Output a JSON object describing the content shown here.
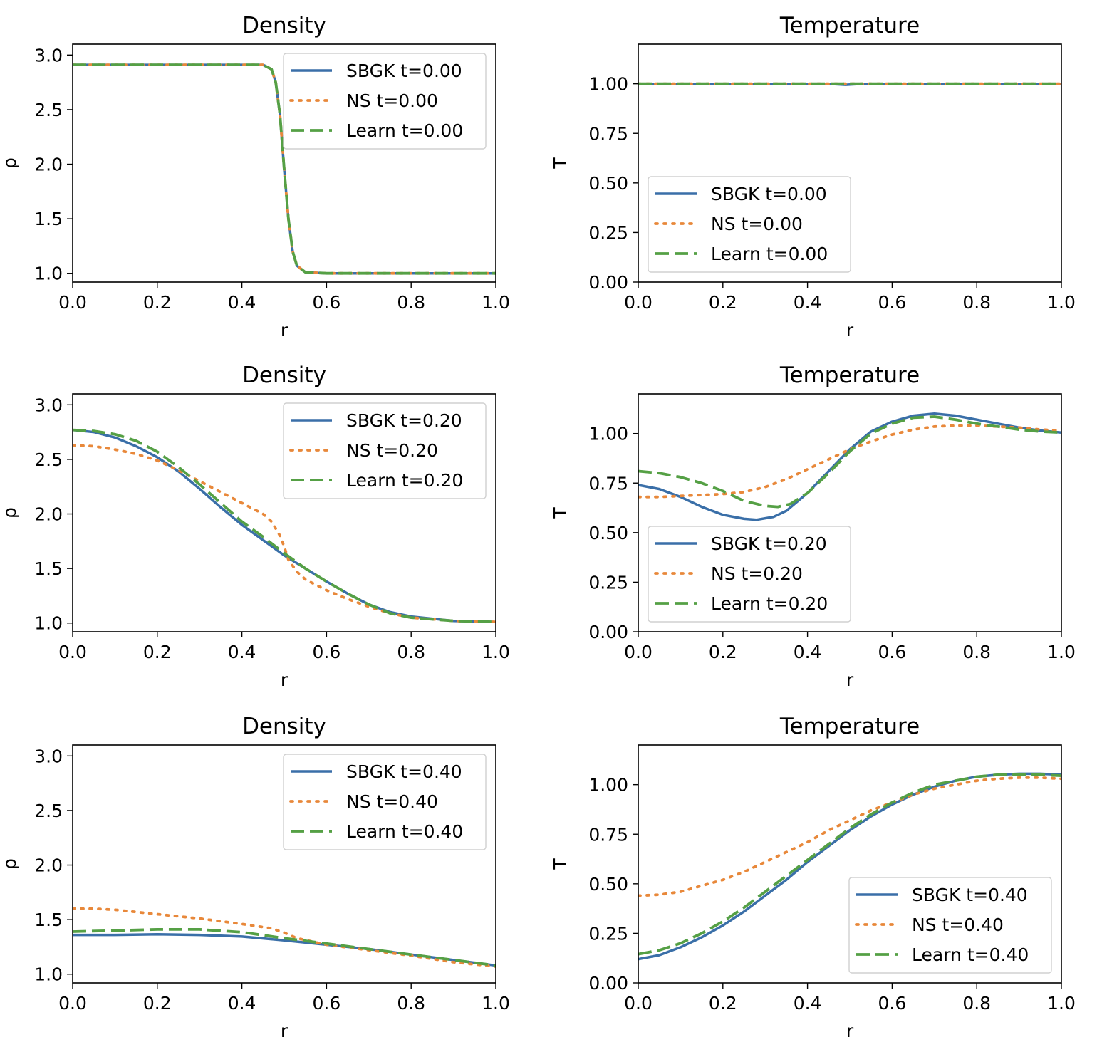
{
  "colors": {
    "SBGK": "#3a6fa8",
    "NS": "#e8883a",
    "Learn": "#55a045"
  },
  "chart_data": [
    {
      "type": "line",
      "title": "Density",
      "xlabel": "r",
      "ylabel": "ρ",
      "xlim": [
        0,
        1
      ],
      "ylim": [
        0.92,
        3.1
      ],
      "xticks": [
        "0.0",
        "0.2",
        "0.4",
        "0.6",
        "0.8",
        "1.0"
      ],
      "yticks": [
        "1.0",
        "1.5",
        "2.0",
        "2.5",
        "3.0"
      ],
      "legend_position": "top-right",
      "series": [
        {
          "name": "SBGK t=0.00",
          "key": "SBGK",
          "x": [
            0,
            0.45,
            0.47,
            0.48,
            0.49,
            0.5,
            0.51,
            0.52,
            0.53,
            0.55,
            0.6,
            1.0
          ],
          "y": [
            2.91,
            2.91,
            2.87,
            2.75,
            2.45,
            1.95,
            1.5,
            1.2,
            1.07,
            1.01,
            1.0,
            1.0
          ]
        },
        {
          "name": "NS t=0.00",
          "key": "NS",
          "x": [
            0,
            0.45,
            0.47,
            0.48,
            0.49,
            0.5,
            0.51,
            0.52,
            0.53,
            0.55,
            0.6,
            1.0
          ],
          "y": [
            2.91,
            2.91,
            2.87,
            2.75,
            2.45,
            1.95,
            1.5,
            1.2,
            1.07,
            1.01,
            1.0,
            1.0
          ]
        },
        {
          "name": "Learn t=0.00",
          "key": "Learn",
          "x": [
            0,
            0.45,
            0.47,
            0.48,
            0.49,
            0.5,
            0.51,
            0.52,
            0.53,
            0.55,
            0.6,
            1.0
          ],
          "y": [
            2.91,
            2.91,
            2.87,
            2.75,
            2.45,
            1.95,
            1.5,
            1.2,
            1.07,
            1.01,
            1.0,
            1.0
          ]
        }
      ]
    },
    {
      "type": "line",
      "title": "Temperature",
      "xlabel": "r",
      "ylabel": "T",
      "xlim": [
        0,
        1
      ],
      "ylim": [
        0,
        1.2
      ],
      "xticks": [
        "0.0",
        "0.2",
        "0.4",
        "0.6",
        "0.8",
        "1.0"
      ],
      "yticks": [
        "0.00",
        "0.25",
        "0.50",
        "0.75",
        "1.00"
      ],
      "legend_position": "lower-left",
      "series": [
        {
          "name": "SBGK t=0.00",
          "key": "SBGK",
          "x": [
            0,
            0.45,
            0.49,
            0.53,
            1.0
          ],
          "y": [
            1.0,
            1.0,
            0.995,
            1.0,
            1.0
          ]
        },
        {
          "name": "NS t=0.00",
          "key": "NS",
          "x": [
            0,
            1.0
          ],
          "y": [
            1.0,
            1.0
          ]
        },
        {
          "name": "Learn t=0.00",
          "key": "Learn",
          "x": [
            0,
            1.0
          ],
          "y": [
            1.0,
            1.0
          ]
        }
      ]
    },
    {
      "type": "line",
      "title": "Density",
      "xlabel": "r",
      "ylabel": "ρ",
      "xlim": [
        0,
        1
      ],
      "ylim": [
        0.92,
        3.1
      ],
      "xticks": [
        "0.0",
        "0.2",
        "0.4",
        "0.6",
        "0.8",
        "1.0"
      ],
      "yticks": [
        "1.0",
        "1.5",
        "2.0",
        "2.5",
        "3.0"
      ],
      "legend_position": "top-right",
      "series": [
        {
          "name": "SBGK t=0.20",
          "key": "SBGK",
          "x": [
            0,
            0.05,
            0.1,
            0.15,
            0.2,
            0.25,
            0.3,
            0.35,
            0.4,
            0.45,
            0.5,
            0.55,
            0.6,
            0.65,
            0.7,
            0.75,
            0.8,
            0.9,
            1.0
          ],
          "y": [
            2.77,
            2.75,
            2.7,
            2.62,
            2.52,
            2.39,
            2.23,
            2.06,
            1.9,
            1.76,
            1.62,
            1.5,
            1.38,
            1.27,
            1.17,
            1.1,
            1.06,
            1.02,
            1.01
          ]
        },
        {
          "name": "NS t=0.20",
          "key": "NS",
          "x": [
            0,
            0.05,
            0.1,
            0.15,
            0.2,
            0.25,
            0.3,
            0.35,
            0.4,
            0.45,
            0.47,
            0.49,
            0.5,
            0.51,
            0.53,
            0.55,
            0.6,
            0.65,
            0.7,
            0.75,
            0.8,
            0.9,
            1.0
          ],
          "y": [
            2.63,
            2.62,
            2.59,
            2.55,
            2.49,
            2.4,
            2.3,
            2.2,
            2.1,
            2.0,
            1.93,
            1.8,
            1.7,
            1.58,
            1.47,
            1.4,
            1.3,
            1.22,
            1.15,
            1.09,
            1.05,
            1.02,
            1.01
          ]
        },
        {
          "name": "Learn t=0.20",
          "key": "Learn",
          "x": [
            0,
            0.05,
            0.1,
            0.15,
            0.2,
            0.25,
            0.3,
            0.35,
            0.4,
            0.45,
            0.5,
            0.55,
            0.6,
            0.65,
            0.7,
            0.75,
            0.8,
            0.9,
            1.0
          ],
          "y": [
            2.77,
            2.76,
            2.73,
            2.67,
            2.57,
            2.43,
            2.27,
            2.1,
            1.93,
            1.79,
            1.64,
            1.5,
            1.38,
            1.27,
            1.17,
            1.09,
            1.05,
            1.02,
            1.01
          ]
        }
      ]
    },
    {
      "type": "line",
      "title": "Temperature",
      "xlabel": "r",
      "ylabel": "T",
      "xlim": [
        0,
        1
      ],
      "ylim": [
        0,
        1.2
      ],
      "xticks": [
        "0.0",
        "0.2",
        "0.4",
        "0.6",
        "0.8",
        "1.0"
      ],
      "yticks": [
        "0.00",
        "0.25",
        "0.50",
        "0.75",
        "1.00"
      ],
      "legend_position": "lower-left",
      "series": [
        {
          "name": "SBGK t=0.20",
          "key": "SBGK",
          "x": [
            0,
            0.05,
            0.1,
            0.15,
            0.2,
            0.25,
            0.28,
            0.32,
            0.35,
            0.4,
            0.45,
            0.5,
            0.55,
            0.6,
            0.65,
            0.7,
            0.75,
            0.8,
            0.85,
            0.9,
            0.95,
            1.0
          ],
          "y": [
            0.74,
            0.72,
            0.68,
            0.63,
            0.59,
            0.57,
            0.565,
            0.58,
            0.61,
            0.7,
            0.81,
            0.92,
            1.01,
            1.06,
            1.09,
            1.1,
            1.09,
            1.07,
            1.05,
            1.03,
            1.015,
            1.005
          ]
        },
        {
          "name": "NS t=0.20",
          "key": "NS",
          "x": [
            0,
            0.05,
            0.1,
            0.15,
            0.2,
            0.25,
            0.3,
            0.35,
            0.4,
            0.45,
            0.5,
            0.55,
            0.6,
            0.65,
            0.7,
            0.75,
            0.8,
            0.85,
            0.9,
            0.95,
            1.0
          ],
          "y": [
            0.68,
            0.68,
            0.685,
            0.69,
            0.695,
            0.705,
            0.73,
            0.77,
            0.82,
            0.87,
            0.92,
            0.96,
            0.995,
            1.02,
            1.035,
            1.04,
            1.04,
            1.035,
            1.03,
            1.02,
            1.015
          ]
        },
        {
          "name": "Learn t=0.20",
          "key": "Learn",
          "x": [
            0,
            0.05,
            0.1,
            0.15,
            0.2,
            0.25,
            0.3,
            0.33,
            0.36,
            0.4,
            0.45,
            0.5,
            0.55,
            0.6,
            0.65,
            0.7,
            0.75,
            0.8,
            0.85,
            0.9,
            0.95,
            1.0
          ],
          "y": [
            0.81,
            0.8,
            0.78,
            0.75,
            0.71,
            0.66,
            0.635,
            0.63,
            0.645,
            0.7,
            0.8,
            0.91,
            1.0,
            1.05,
            1.08,
            1.085,
            1.07,
            1.05,
            1.035,
            1.02,
            1.01,
            1.005
          ]
        }
      ]
    },
    {
      "type": "line",
      "title": "Density",
      "xlabel": "r",
      "ylabel": "ρ",
      "xlim": [
        0,
        1
      ],
      "ylim": [
        0.92,
        3.1
      ],
      "xticks": [
        "0.0",
        "0.2",
        "0.4",
        "0.6",
        "0.8",
        "1.0"
      ],
      "yticks": [
        "1.0",
        "1.5",
        "2.0",
        "2.5",
        "3.0"
      ],
      "legend_position": "top-right",
      "series": [
        {
          "name": "SBGK t=0.40",
          "key": "SBGK",
          "x": [
            0,
            0.1,
            0.2,
            0.3,
            0.4,
            0.5,
            0.6,
            0.7,
            0.8,
            0.9,
            1.0
          ],
          "y": [
            1.36,
            1.36,
            1.365,
            1.36,
            1.345,
            1.31,
            1.27,
            1.23,
            1.18,
            1.13,
            1.08
          ]
        },
        {
          "name": "NS t=0.40",
          "key": "NS",
          "x": [
            0,
            0.05,
            0.1,
            0.15,
            0.2,
            0.3,
            0.4,
            0.47,
            0.5,
            0.53,
            0.6,
            0.7,
            0.8,
            0.9,
            1.0
          ],
          "y": [
            1.6,
            1.6,
            1.59,
            1.57,
            1.55,
            1.51,
            1.46,
            1.42,
            1.38,
            1.33,
            1.27,
            1.22,
            1.17,
            1.11,
            1.07
          ]
        },
        {
          "name": "Learn t=0.40",
          "key": "Learn",
          "x": [
            0,
            0.1,
            0.2,
            0.3,
            0.4,
            0.5,
            0.6,
            0.7,
            0.8,
            0.9,
            1.0
          ],
          "y": [
            1.39,
            1.4,
            1.41,
            1.41,
            1.385,
            1.33,
            1.28,
            1.23,
            1.18,
            1.13,
            1.08
          ]
        }
      ]
    },
    {
      "type": "line",
      "title": "Temperature",
      "xlabel": "r",
      "ylabel": "T",
      "xlim": [
        0,
        1
      ],
      "ylim": [
        0,
        1.2
      ],
      "xticks": [
        "0.0",
        "0.2",
        "0.4",
        "0.6",
        "0.8",
        "1.0"
      ],
      "yticks": [
        "0.00",
        "0.25",
        "0.50",
        "0.75",
        "1.00"
      ],
      "legend_position": "lower-right",
      "series": [
        {
          "name": "SBGK t=0.40",
          "key": "SBGK",
          "x": [
            0,
            0.05,
            0.1,
            0.15,
            0.2,
            0.25,
            0.3,
            0.35,
            0.4,
            0.45,
            0.5,
            0.55,
            0.6,
            0.65,
            0.7,
            0.75,
            0.8,
            0.85,
            0.9,
            0.95,
            1.0
          ],
          "y": [
            0.12,
            0.14,
            0.18,
            0.23,
            0.29,
            0.36,
            0.44,
            0.52,
            0.61,
            0.69,
            0.77,
            0.84,
            0.9,
            0.95,
            0.99,
            1.02,
            1.04,
            1.05,
            1.055,
            1.055,
            1.05
          ]
        },
        {
          "name": "NS t=0.40",
          "key": "NS",
          "x": [
            0,
            0.05,
            0.1,
            0.15,
            0.2,
            0.25,
            0.3,
            0.35,
            0.4,
            0.45,
            0.5,
            0.55,
            0.6,
            0.65,
            0.7,
            0.75,
            0.8,
            0.85,
            0.9,
            0.95,
            1.0
          ],
          "y": [
            0.44,
            0.445,
            0.46,
            0.49,
            0.52,
            0.56,
            0.61,
            0.66,
            0.71,
            0.77,
            0.82,
            0.87,
            0.91,
            0.95,
            0.98,
            1.0,
            1.02,
            1.03,
            1.035,
            1.035,
            1.03
          ]
        },
        {
          "name": "Learn t=0.40",
          "key": "Learn",
          "x": [
            0,
            0.05,
            0.1,
            0.15,
            0.2,
            0.25,
            0.3,
            0.35,
            0.4,
            0.45,
            0.5,
            0.55,
            0.6,
            0.65,
            0.7,
            0.75,
            0.8,
            0.85,
            0.9,
            0.95,
            1.0
          ],
          "y": [
            0.145,
            0.165,
            0.2,
            0.25,
            0.31,
            0.38,
            0.46,
            0.54,
            0.62,
            0.7,
            0.78,
            0.85,
            0.91,
            0.96,
            1.0,
            1.02,
            1.04,
            1.05,
            1.05,
            1.05,
            1.045
          ]
        }
      ]
    }
  ]
}
